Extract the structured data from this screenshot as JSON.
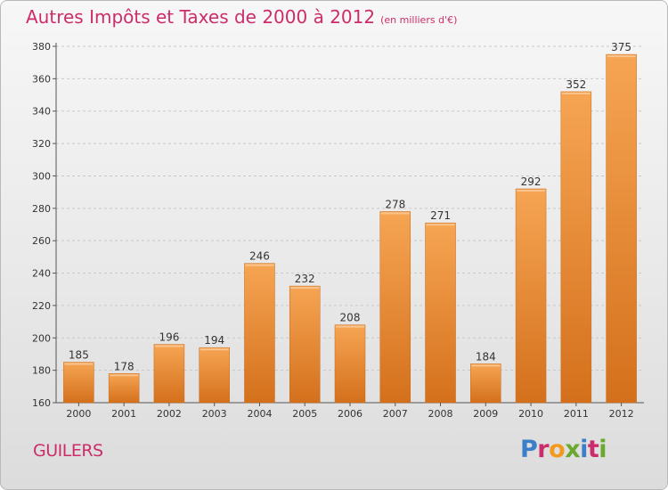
{
  "header": {
    "title": "Autres Impôts et Taxes de 2000 à 2012",
    "subtitle": "(en milliers d'€)"
  },
  "footer": {
    "commune": "GUILERS",
    "logo_text": "Proxiti",
    "logo_colors": [
      "#3a7fc8",
      "#cc2d6a",
      "#f29a1e",
      "#6aa82e",
      "#3a7fc8",
      "#cc2d6a",
      "#6aa82e"
    ]
  },
  "chart_data": {
    "type": "bar",
    "title": "Autres Impôts et Taxes de 2000 à 2012",
    "subtitle": "(en milliers d'€)",
    "xlabel": "",
    "ylabel": "",
    "categories": [
      "2000",
      "2001",
      "2002",
      "2003",
      "2004",
      "2005",
      "2006",
      "2007",
      "2008",
      "2009",
      "2010",
      "2011",
      "2012"
    ],
    "values": [
      185,
      178,
      196,
      194,
      246,
      232,
      208,
      278,
      271,
      184,
      292,
      352,
      375
    ],
    "ylim": [
      160,
      380
    ],
    "yticks": [
      160,
      180,
      200,
      220,
      240,
      260,
      280,
      300,
      320,
      340,
      360,
      380
    ],
    "grid": true,
    "legend": "none",
    "colors": {
      "bar_top": "#f6a553",
      "bar_bottom": "#d4701c",
      "label": "#cc2d6a",
      "axis": "#555555"
    }
  }
}
